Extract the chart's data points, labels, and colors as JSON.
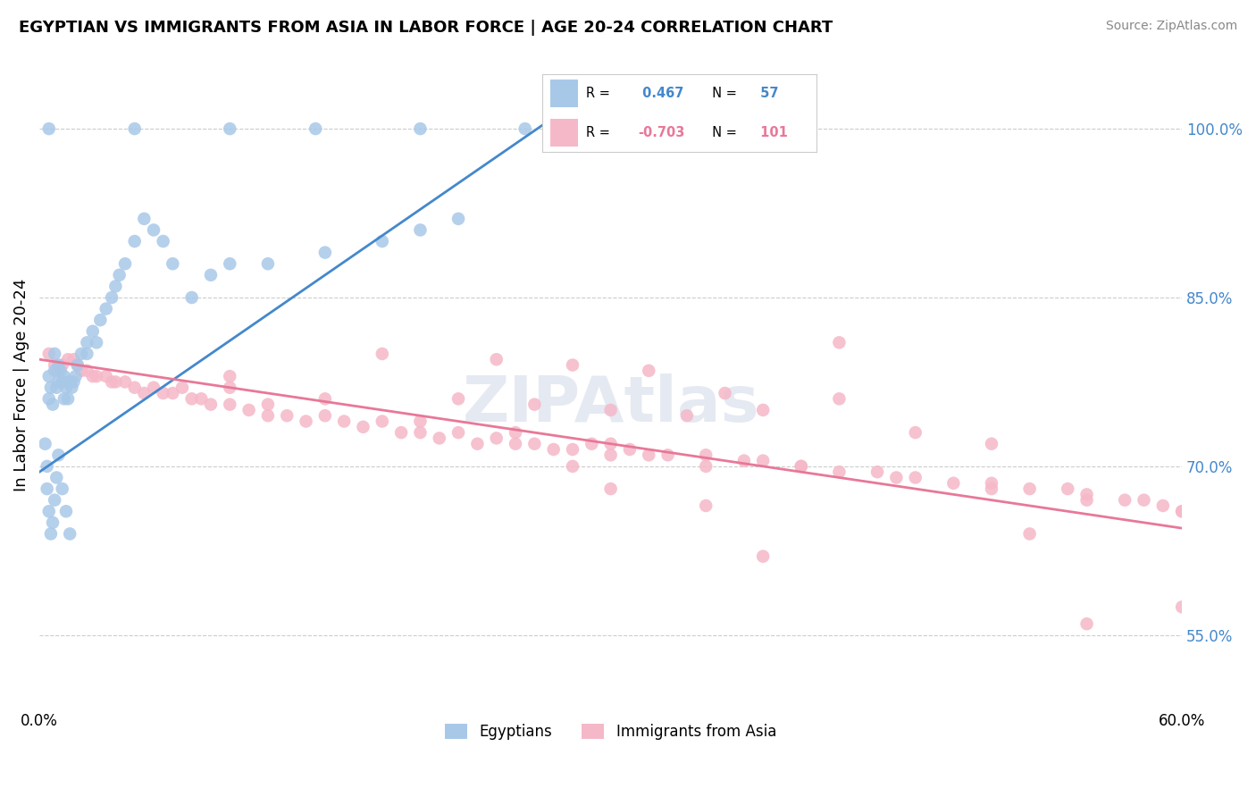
{
  "title": "EGYPTIAN VS IMMIGRANTS FROM ASIA IN LABOR FORCE | AGE 20-24 CORRELATION CHART",
  "source": "Source: ZipAtlas.com",
  "ylabel": "In Labor Force | Age 20-24",
  "x_min": 0.0,
  "x_max": 0.6,
  "y_min": 0.485,
  "y_max": 1.06,
  "x_ticks": [
    0.0,
    0.1,
    0.2,
    0.3,
    0.4,
    0.5,
    0.6
  ],
  "y_ticks_right": [
    0.55,
    0.7,
    0.85,
    1.0
  ],
  "y_tick_labels_right": [
    "55.0%",
    "70.0%",
    "85.0%",
    "100.0%"
  ],
  "blue_color": "#a8c8e8",
  "pink_color": "#f5b8c8",
  "blue_line_color": "#4488cc",
  "pink_line_color": "#e87898",
  "R_blue": 0.467,
  "N_blue": 57,
  "R_pink": -0.703,
  "N_pink": 101,
  "watermark": "ZIPAtlas",
  "background_color": "#ffffff",
  "grid_color": "#cccccc",
  "blue_line_x0": 0.0,
  "blue_line_x1": 0.27,
  "blue_line_y0": 0.695,
  "blue_line_y1": 1.01,
  "pink_line_x0": 0.0,
  "pink_line_x1": 0.6,
  "pink_line_y0": 0.795,
  "pink_line_y1": 0.645,
  "blue_points_x": [
    0.005,
    0.005,
    0.006,
    0.007,
    0.008,
    0.008,
    0.009,
    0.01,
    0.01,
    0.011,
    0.012,
    0.013,
    0.013,
    0.014,
    0.015,
    0.015,
    0.016,
    0.017,
    0.018,
    0.019,
    0.02,
    0.022,
    0.025,
    0.025,
    0.028,
    0.03,
    0.032,
    0.035,
    0.038,
    0.04,
    0.042,
    0.045,
    0.05,
    0.055,
    0.06,
    0.065,
    0.07,
    0.08,
    0.09,
    0.1,
    0.12,
    0.15,
    0.18,
    0.2,
    0.22,
    0.003,
    0.004,
    0.004,
    0.005,
    0.006,
    0.007,
    0.008,
    0.009,
    0.01,
    0.012,
    0.014,
    0.016
  ],
  "blue_points_y": [
    0.78,
    0.76,
    0.77,
    0.755,
    0.785,
    0.8,
    0.77,
    0.79,
    0.775,
    0.785,
    0.775,
    0.78,
    0.76,
    0.77,
    0.775,
    0.76,
    0.775,
    0.77,
    0.775,
    0.78,
    0.79,
    0.8,
    0.8,
    0.81,
    0.82,
    0.81,
    0.83,
    0.84,
    0.85,
    0.86,
    0.87,
    0.88,
    0.9,
    0.92,
    0.91,
    0.9,
    0.88,
    0.85,
    0.87,
    0.88,
    0.88,
    0.89,
    0.9,
    0.91,
    0.92,
    0.72,
    0.7,
    0.68,
    0.66,
    0.64,
    0.65,
    0.67,
    0.69,
    0.71,
    0.68,
    0.66,
    0.64
  ],
  "blue_points_top_x": [
    0.005,
    0.05,
    0.1,
    0.145,
    0.2,
    0.255
  ],
  "blue_points_top_y": [
    1.0,
    1.0,
    1.0,
    1.0,
    1.0,
    1.0
  ],
  "pink_points_x": [
    0.005,
    0.008,
    0.01,
    0.012,
    0.015,
    0.018,
    0.02,
    0.022,
    0.025,
    0.028,
    0.03,
    0.035,
    0.038,
    0.04,
    0.045,
    0.05,
    0.055,
    0.06,
    0.065,
    0.07,
    0.075,
    0.08,
    0.085,
    0.09,
    0.1,
    0.11,
    0.12,
    0.13,
    0.14,
    0.15,
    0.16,
    0.17,
    0.18,
    0.19,
    0.2,
    0.21,
    0.22,
    0.23,
    0.24,
    0.25,
    0.26,
    0.27,
    0.28,
    0.29,
    0.3,
    0.31,
    0.32,
    0.33,
    0.35,
    0.37,
    0.38,
    0.4,
    0.42,
    0.44,
    0.46,
    0.48,
    0.5,
    0.52,
    0.54,
    0.55,
    0.57,
    0.58,
    0.59,
    0.6,
    0.1,
    0.15,
    0.2,
    0.25,
    0.3,
    0.35,
    0.4,
    0.45,
    0.5,
    0.55,
    0.6,
    0.38,
    0.42,
    0.46,
    0.5,
    0.42,
    0.55,
    0.6,
    0.38,
    0.22,
    0.26,
    0.3,
    0.34,
    0.18,
    0.24,
    0.28,
    0.32,
    0.36,
    0.3,
    0.35,
    0.1,
    0.12,
    0.28,
    0.52
  ],
  "pink_points_y": [
    0.8,
    0.79,
    0.785,
    0.79,
    0.795,
    0.795,
    0.79,
    0.785,
    0.785,
    0.78,
    0.78,
    0.78,
    0.775,
    0.775,
    0.775,
    0.77,
    0.765,
    0.77,
    0.765,
    0.765,
    0.77,
    0.76,
    0.76,
    0.755,
    0.755,
    0.75,
    0.745,
    0.745,
    0.74,
    0.745,
    0.74,
    0.735,
    0.74,
    0.73,
    0.73,
    0.725,
    0.73,
    0.72,
    0.725,
    0.72,
    0.72,
    0.715,
    0.715,
    0.72,
    0.71,
    0.715,
    0.71,
    0.71,
    0.7,
    0.705,
    0.705,
    0.7,
    0.695,
    0.695,
    0.69,
    0.685,
    0.685,
    0.68,
    0.68,
    0.675,
    0.67,
    0.67,
    0.665,
    0.66,
    0.78,
    0.76,
    0.74,
    0.73,
    0.72,
    0.71,
    0.7,
    0.69,
    0.68,
    0.67,
    0.66,
    0.75,
    0.76,
    0.73,
    0.72,
    0.81,
    0.56,
    0.575,
    0.62,
    0.76,
    0.755,
    0.75,
    0.745,
    0.8,
    0.795,
    0.79,
    0.785,
    0.765,
    0.68,
    0.665,
    0.77,
    0.755,
    0.7,
    0.64
  ]
}
